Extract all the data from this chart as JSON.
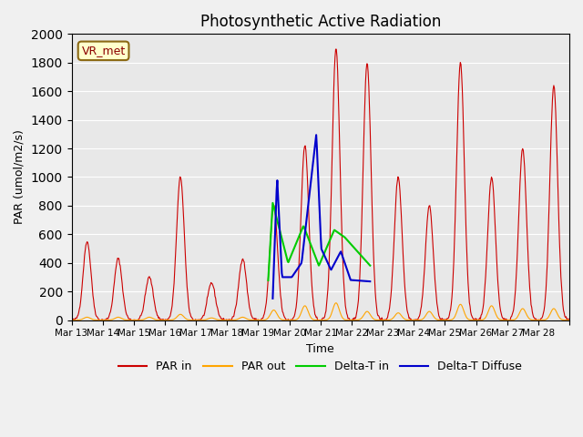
{
  "title": "Photosynthetic Active Radiation",
  "ylabel": "PAR (umol/m2/s)",
  "xlabel": "Time",
  "ylim": [
    0,
    2000
  ],
  "annotation": "VR_met",
  "background_color": "#e8e8e8",
  "tick_labels": [
    "Mar 13",
    "Mar 14",
    "Mar 15",
    "Mar 16",
    "Mar 17",
    "Mar 18",
    "Mar 19",
    "Mar 20",
    "Mar 21",
    "Mar 22",
    "Mar 23",
    "Mar 24",
    "Mar 25",
    "Mar 26",
    "Mar 27",
    "Mar 28"
  ],
  "legend": [
    "PAR in",
    "PAR out",
    "Delta-T in",
    "Delta-T Diffuse"
  ],
  "colors": {
    "PAR_in": "#cc0000",
    "PAR_out": "#ffa500",
    "delta_t_in": "#00cc00",
    "delta_t_diffuse": "#0000cc"
  }
}
